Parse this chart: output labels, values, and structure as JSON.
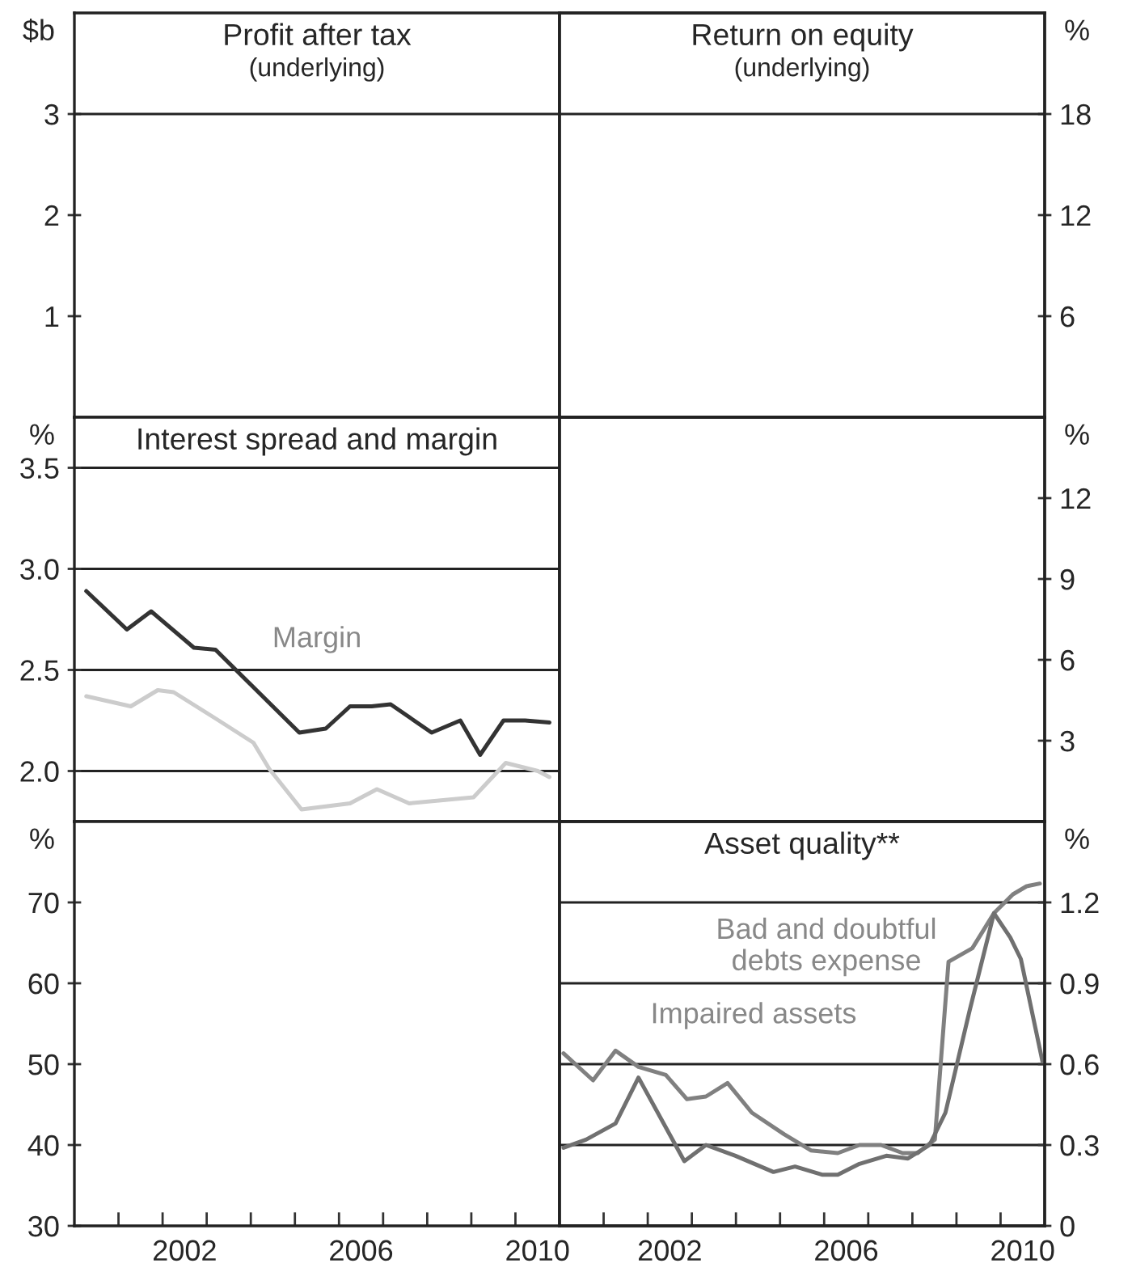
{
  "chart_data": [
    {
      "type": "line",
      "title": "Profit after tax",
      "subtitle": "(underlying)",
      "ylabel": "$b",
      "xlim": [
        2000,
        2011
      ],
      "ylim": [
        0,
        4
      ],
      "yticks": [
        1,
        2,
        3
      ],
      "tick_labels": "y",
      "ref_lines": [
        {
          "axis": "y",
          "value": 3
        }
      ]
    },
    {
      "type": "line",
      "title": "Return on equity",
      "subtitle": "(underlying)",
      "y2label": "%",
      "xlim": [
        2000,
        2011
      ],
      "y2lim": [
        0,
        24
      ],
      "y2ticks": [
        6,
        12,
        18
      ],
      "tick_labels": "y",
      "ref_lines": [
        {
          "axis": "y2",
          "value": 18
        }
      ]
    },
    {
      "type": "line",
      "title": "Interest spread and margin",
      "ylabel": "%",
      "xlim": [
        2000,
        2011
      ],
      "ylim": [
        1.75,
        3.75
      ],
      "yticks": [
        {
          "value": 2,
          "label": "2.0"
        },
        {
          "value": 2.5,
          "label": "2.5"
        },
        {
          "value": 3,
          "label": "3.0"
        },
        {
          "value": 3.5,
          "label": "3.5"
        }
      ],
      "tick_labels": "y",
      "grid": "y",
      "annotations": [
        "Margin"
      ],
      "series": [
        {
          "color": "#333333",
          "x": [
            2000.27,
            2001.19,
            2001.74,
            2002.71,
            2003.2,
            2005.1,
            2005.7,
            2006.25,
            2006.74,
            2007.17,
            2008.1,
            2008.75,
            2009.2,
            2009.73,
            2010.22,
            2010.77
          ],
          "values": [
            2.89,
            2.7,
            2.79,
            2.61,
            2.6,
            2.19,
            2.21,
            2.32,
            2.32,
            2.33,
            2.19,
            2.25,
            2.08,
            2.25,
            2.25,
            2.24
          ]
        },
        {
          "color": "#cccccc",
          "x": [
            2000.27,
            2001.28,
            2001.89,
            2002.25,
            2003.2,
            2004.06,
            2004.42,
            2005.15,
            2005.64,
            2006.25,
            2006.86,
            2007.59,
            2008.32,
            2009.05,
            2009.78,
            2010.51,
            2010.77
          ],
          "values": [
            2.37,
            2.32,
            2.4,
            2.39,
            2.26,
            2.14,
            2.01,
            1.81,
            null,
            1.84,
            1.91,
            1.84,
            null,
            1.87,
            2.04,
            2.0,
            1.97
          ]
        }
      ]
    },
    {
      "type": "line",
      "y2label": "%",
      "xlim": [
        2000,
        2011
      ],
      "y2lim": [
        0,
        15
      ],
      "y2ticks": [
        3,
        6,
        9,
        12
      ],
      "tick_labels": "y"
    },
    {
      "type": "line",
      "ylabel": "%",
      "xlim": [
        2000,
        2011
      ],
      "ylim": [
        30,
        80
      ],
      "yticks": [
        30,
        40,
        50,
        60,
        70
      ],
      "xticks": [
        {
          "value": 2001,
          "label": null
        },
        {
          "value": 2002,
          "label": null
        },
        {
          "value": 2002.5,
          "label": "2002"
        },
        {
          "value": 2003,
          "label": null
        },
        {
          "value": 2004,
          "label": null
        },
        {
          "value": 2005,
          "label": null
        },
        {
          "value": 2006,
          "label": null
        },
        {
          "value": 2006.5,
          "label": "2006"
        },
        {
          "value": 2007,
          "label": null
        },
        {
          "value": 2008,
          "label": null
        },
        {
          "value": 2009,
          "label": null
        },
        {
          "value": 2010,
          "label": null
        },
        {
          "value": 2010.5,
          "label": "2010"
        }
      ]
    },
    {
      "type": "line",
      "title": "Asset quality**",
      "y2label": "%",
      "xlim": [
        2000,
        2011
      ],
      "y2lim": [
        0,
        1.5
      ],
      "y2ticks": [
        0,
        0.3,
        0.6,
        0.9,
        1.2
      ],
      "grid": "y",
      "xticks": [
        {
          "value": 2001,
          "label": null
        },
        {
          "value": 2002,
          "label": null
        },
        {
          "value": 2002.5,
          "label": "2002"
        },
        {
          "value": 2003,
          "label": null
        },
        {
          "value": 2004,
          "label": null
        },
        {
          "value": 2005,
          "label": null
        },
        {
          "value": 2006,
          "label": null
        },
        {
          "value": 2006.5,
          "label": "2006"
        },
        {
          "value": 2007,
          "label": null
        },
        {
          "value": 2008,
          "label": null
        },
        {
          "value": 2009,
          "label": null
        },
        {
          "value": 2010,
          "label": null
        },
        {
          "value": 2010.5,
          "label": "2010"
        }
      ],
      "annotations": [
        "Impaired assets",
        "Bad and doubtful\ndebts expense"
      ],
      "series": [
        {
          "color": "#808080",
          "axis": "y2",
          "x": [
            2000.09,
            2000.76,
            2001.27,
            2001.79,
            2002.41,
            2002.89,
            2003.32,
            2003.81,
            2004.36,
            2005.09,
            2005.7,
            2006.31,
            2006.8,
            2007.29,
            2007.78,
            2008.12,
            2008.51,
            2008.82,
            2009.36,
            2009.85,
            2010.28,
            2010.59,
            2010.89
          ],
          "values": [
            0.64,
            0.54,
            0.65,
            0.59,
            0.56,
            0.47,
            0.48,
            0.53,
            0.42,
            0.34,
            0.28,
            0.27,
            0.3,
            0.3,
            0.27,
            0.27,
            0.32,
            0.98,
            1.03,
            1.16,
            1.23,
            1.26,
            1.27
          ]
        },
        {
          "color": "#707070",
          "axis": "y2",
          "x": [
            2000.09,
            2000.6,
            2001.27,
            2001.79,
            2002.83,
            2003.32,
            2003.99,
            2004.85,
            2005.34,
            2005.95,
            2006.31,
            2006.8,
            2007.41,
            2007.9,
            2008.39,
            2008.75,
            2009.3,
            2009.85,
            2010.22,
            2010.46,
            2010.95
          ],
          "values": [
            0.29,
            0.32,
            0.38,
            0.55,
            0.24,
            0.3,
            0.26,
            0.2,
            0.22,
            0.19,
            0.19,
            0.23,
            0.26,
            0.25,
            0.3,
            0.42,
            0.8,
            1.16,
            1.07,
            0.99,
            0.61
          ]
        }
      ]
    }
  ]
}
